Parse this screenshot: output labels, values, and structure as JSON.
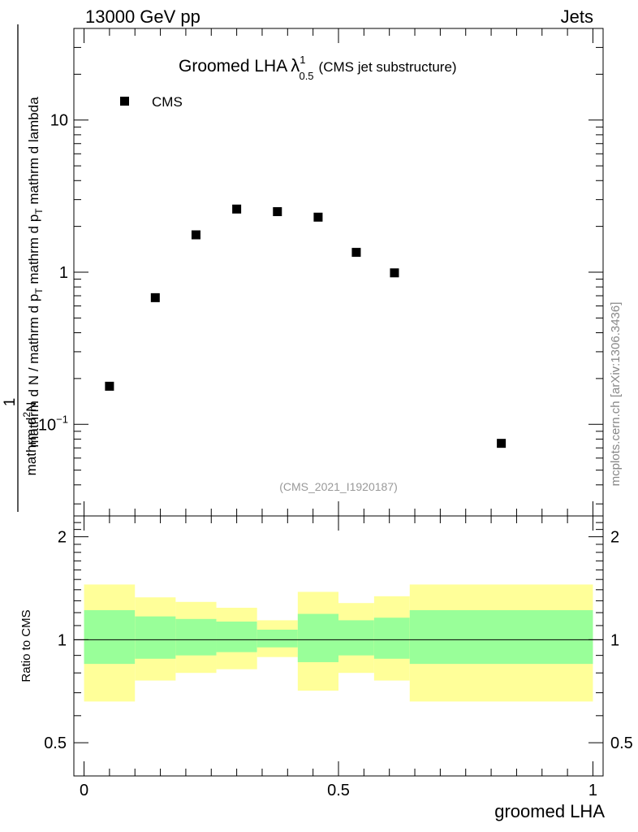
{
  "header": {
    "left": "13000 GeV pp",
    "right": "Jets"
  },
  "title": {
    "main": "Groomed LHA",
    "lambda": "λ",
    "sup": "1",
    "sub": "0.5",
    "tail": "(CMS jet substructure)"
  },
  "legend": {
    "label": "CMS"
  },
  "watermark": "(CMS_2021_I1920187)",
  "side_label": "mcplots.cern.ch [arXiv:1306.3436]",
  "ylabel": {
    "numerator": "1",
    "line1": "mathrm d N / mathrm d p",
    "line1_sub": "T",
    "line1_tail": " mathrm d p",
    "line1_sub2": "T",
    "line1_tail2": " mathrm d lambda",
    "line2": "mathrm d",
    "line2_sup": "2",
    "line2_tail": "N"
  },
  "ratio_ylabel": "Ratio to CMS",
  "xlabel": "groomed LHA",
  "colors": {
    "band_outer": "#ffff99",
    "band_inner": "#99ff99",
    "marker": "#000000"
  },
  "chart_data": [
    {
      "type": "scatter",
      "yscale": "log",
      "ylim": [
        0.025,
        40
      ],
      "xlim": [
        -0.02,
        1.02
      ],
      "ytick_labels": [
        "10",
        "1",
        "10^-1"
      ],
      "series": [
        {
          "name": "CMS",
          "x": [
            0.05,
            0.14,
            0.22,
            0.3,
            0.38,
            0.46,
            0.535,
            0.61,
            0.82
          ],
          "y": [
            0.178,
            0.68,
            1.76,
            2.6,
            2.5,
            2.3,
            1.35,
            0.99,
            0.075
          ]
        }
      ]
    },
    {
      "type": "area",
      "ylim": [
        0.4,
        2.3
      ],
      "xlim": [
        -0.02,
        1.02
      ],
      "ytick_labels": [
        "0.5",
        "1",
        "2"
      ],
      "xtick_labels": [
        "0",
        "0.5",
        "1"
      ],
      "bins": [
        {
          "x": [
            0.0,
            0.1
          ],
          "outer": [
            0.66,
            1.45
          ],
          "inner": [
            0.85,
            1.22
          ]
        },
        {
          "x": [
            0.1,
            0.18
          ],
          "outer": [
            0.76,
            1.33
          ],
          "inner": [
            0.88,
            1.17
          ]
        },
        {
          "x": [
            0.18,
            0.26
          ],
          "outer": [
            0.8,
            1.29
          ],
          "inner": [
            0.9,
            1.15
          ]
        },
        {
          "x": [
            0.26,
            0.34
          ],
          "outer": [
            0.82,
            1.24
          ],
          "inner": [
            0.92,
            1.13
          ]
        },
        {
          "x": [
            0.34,
            0.42
          ],
          "outer": [
            0.89,
            1.14
          ],
          "inner": [
            0.95,
            1.07
          ]
        },
        {
          "x": [
            0.42,
            0.5
          ],
          "outer": [
            0.71,
            1.38
          ],
          "inner": [
            0.86,
            1.19
          ]
        },
        {
          "x": [
            0.5,
            0.57
          ],
          "outer": [
            0.8,
            1.28
          ],
          "inner": [
            0.9,
            1.14
          ]
        },
        {
          "x": [
            0.57,
            0.64
          ],
          "outer": [
            0.76,
            1.34
          ],
          "inner": [
            0.88,
            1.16
          ]
        },
        {
          "x": [
            0.64,
            1.0
          ],
          "outer": [
            0.66,
            1.45
          ],
          "inner": [
            0.85,
            1.22
          ]
        }
      ],
      "reference_line": 1.0
    }
  ]
}
